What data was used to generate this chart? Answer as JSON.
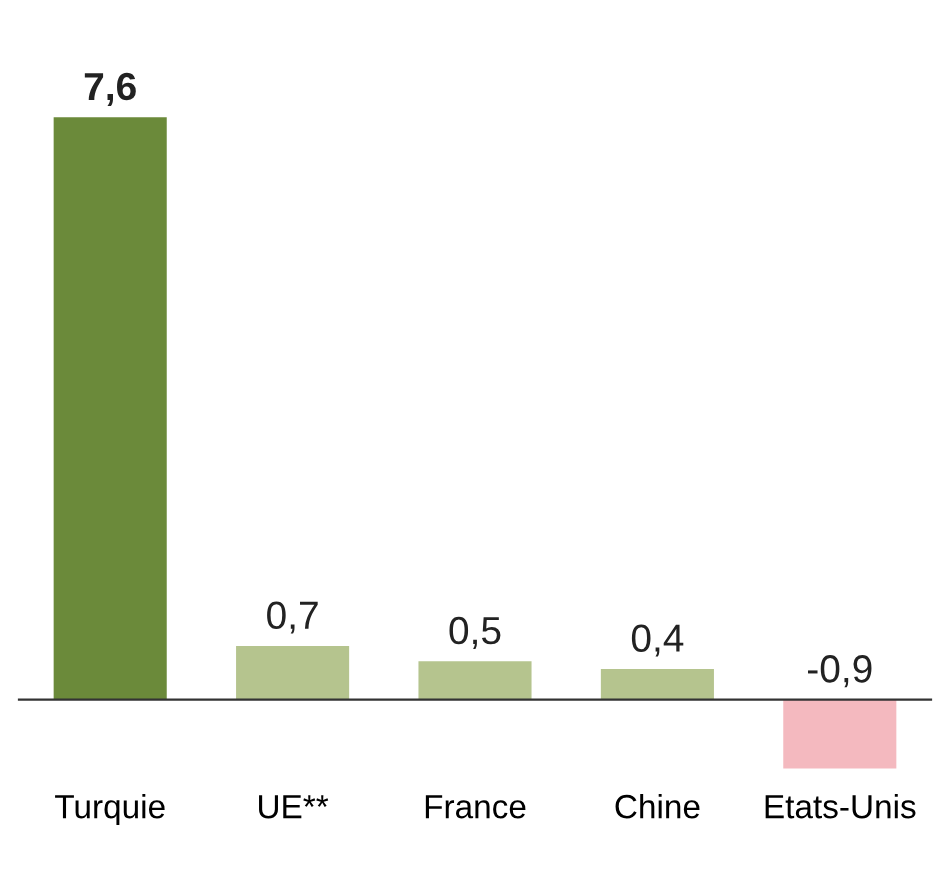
{
  "chart_data": {
    "type": "bar",
    "categories": [
      "Turquie",
      "UE**",
      "France",
      "Chine",
      "Etats-Unis"
    ],
    "values": [
      7.6,
      0.7,
      0.5,
      0.4,
      -0.9
    ],
    "colors": [
      "#6b8a3a",
      "#b5c48e",
      "#b5c48e",
      "#b5c48e",
      "#f4b9bf"
    ],
    "value_labels": [
      "7,6",
      "0,7",
      "0,5",
      "0,4",
      "-0,9"
    ],
    "grid": false,
    "legend": false
  }
}
